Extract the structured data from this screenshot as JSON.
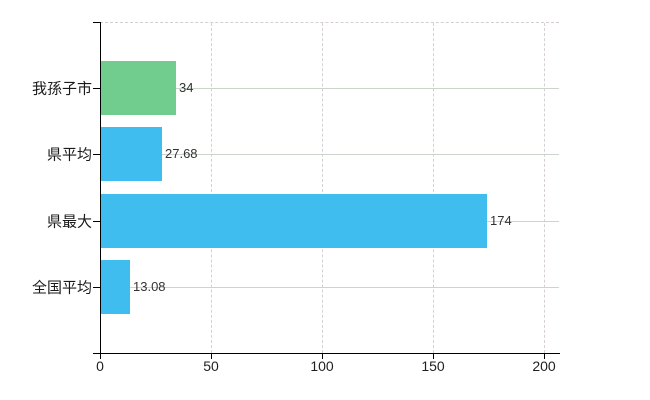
{
  "chart_data": {
    "type": "bar",
    "orientation": "horizontal",
    "title": "",
    "xlabel": "",
    "ylabel": "",
    "categories": [
      "我孫子市",
      "県平均",
      "県最大",
      "全国平均"
    ],
    "values": [
      34,
      27.68,
      174,
      13.08
    ],
    "value_labels": [
      "34",
      "27.68",
      "174",
      "13.08"
    ],
    "bar_colors": [
      "#70cd8e",
      "#3fbdee",
      "#3fbdee",
      "#3fbdee"
    ],
    "x_ticks": [
      0,
      50,
      100,
      150,
      200
    ],
    "x_tick_labels": [
      "0",
      "50",
      "100",
      "150",
      "200"
    ],
    "xlim": [
      0,
      207
    ],
    "grid": true,
    "grid_horizontal_style": "solid",
    "grid_vertical_style": "dashed",
    "legend": false
  },
  "colors": {
    "background": "#ffffff",
    "axis": "#000000",
    "grid_horizontal": "#ccd5cc",
    "grid_vertical": "#d6cfd6",
    "plot_top_border": "#d4cdd4",
    "bar_green": "#70cd8e",
    "bar_blue": "#3fbdee",
    "category_label_text": "#1a1a1a",
    "value_label_text": "#333333",
    "x_tick_label_text": "#1f1f1f"
  }
}
